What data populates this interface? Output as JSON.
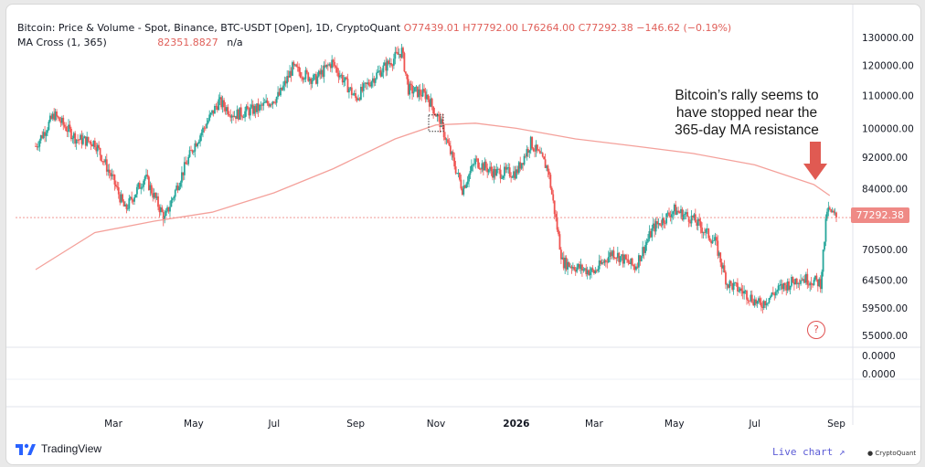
{
  "legend": {
    "title": "Bitcoin: Price & Volume - Spot, Binance, BTC-USDT [Open], 1D, CryptoQuant",
    "ohlc": "O77439.01  H77792.00  L76264.00  C77292.38  −146.62 (−0.19%)",
    "ma_label": "MA Cross (1, 365)",
    "ma_value": "82351.8827",
    "ma_na": "n/a"
  },
  "price_tag": "77292.38",
  "annotation": {
    "line1": "Bitcoin’s rally seems to",
    "line2": "have stopped near the",
    "line3": "365-day MA resistance"
  },
  "help_icon_text": "?",
  "branding": {
    "tradingview": "TradingView",
    "live_chart": "Live chart ↗",
    "cryptoquant": "● CryptoQuant"
  },
  "colors": {
    "up": "#26a69a",
    "down": "#ef5350",
    "ma": "#f4a19b",
    "arrow": "#e05a52",
    "axis_text": "#131722"
  },
  "chart_data": {
    "type": "candlestick",
    "title": "Bitcoin: Price & Volume - Spot, Binance, BTC-USDT [Open], 1D, CryptoQuant",
    "y_scale": "log",
    "ylim": [
      55000,
      130000
    ],
    "y_ticks": [
      "130000.00",
      "120000.00",
      "110000.00",
      "100000.00",
      "92000.00",
      "84000.00",
      "70500.00",
      "64500.00",
      "59500.00",
      "55000.00"
    ],
    "y_ticks_values": [
      130000,
      120000,
      110000,
      100000,
      92000,
      84000,
      70500,
      64500,
      59500,
      55000
    ],
    "lower_pane_ticks": [
      "0.0000",
      "0.0000"
    ],
    "x_ticks": [
      "Mar",
      "May",
      "Jul",
      "Sep",
      "Nov",
      "2026",
      "Mar",
      "May",
      "Jul",
      "Sep"
    ],
    "x_ticks_dates": [
      "2025-03-01",
      "2025-05-01",
      "2025-07-01",
      "2025-09-01",
      "2025-11-01",
      "2026-01-01",
      "2026-03-01",
      "2026-05-01",
      "2026-07-01",
      "2026-09-01"
    ],
    "x_range": [
      "2025-01-01",
      "2026-09-01"
    ],
    "price_series": {
      "name": "BTC-USDT",
      "dates": [
        "2025-01-01",
        "2025-01-15",
        "2025-02-01",
        "2025-02-15",
        "2025-03-01",
        "2025-03-10",
        "2025-03-25",
        "2025-04-09",
        "2025-04-20",
        "2025-05-01",
        "2025-05-20",
        "2025-06-01",
        "2025-06-20",
        "2025-07-05",
        "2025-07-15",
        "2025-08-01",
        "2025-08-14",
        "2025-09-01",
        "2025-09-15",
        "2025-10-06",
        "2025-10-11",
        "2025-10-25",
        "2025-11-05",
        "2025-11-21",
        "2025-12-01",
        "2025-12-15",
        "2026-01-01",
        "2026-01-12",
        "2026-01-25",
        "2026-02-05",
        "2026-02-15",
        "2026-03-01",
        "2026-03-15",
        "2026-04-01",
        "2026-04-15",
        "2026-05-01",
        "2026-05-15",
        "2026-06-01",
        "2026-06-10",
        "2026-06-25",
        "2026-07-05",
        "2026-07-20",
        "2026-08-05",
        "2026-08-20",
        "2026-08-25",
        "2026-09-01"
      ],
      "close": [
        95000,
        104000,
        97000,
        96000,
        86000,
        79000,
        87000,
        77000,
        86000,
        95000,
        108000,
        104000,
        106000,
        110000,
        119000,
        115000,
        121000,
        109000,
        116000,
        125000,
        112000,
        110000,
        101000,
        84000,
        91000,
        88000,
        88000,
        96000,
        89000,
        68000,
        67000,
        66000,
        70000,
        67000,
        75000,
        79000,
        77000,
        72000,
        64000,
        62000,
        60000,
        63000,
        65000,
        64000,
        79000,
        77300
      ]
    },
    "ma_series": {
      "name": "MA Cross (1, 365)",
      "dates": [
        "2025-01-01",
        "2025-02-15",
        "2025-04-01",
        "2025-05-15",
        "2025-07-01",
        "2025-08-15",
        "2025-10-01",
        "2025-11-01",
        "2025-12-01",
        "2026-01-01",
        "2026-02-15",
        "2026-04-01",
        "2026-05-15",
        "2026-07-01",
        "2026-08-15",
        "2026-08-27"
      ],
      "values": [
        66500,
        74000,
        76500,
        78500,
        83000,
        89000,
        97000,
        101000,
        101500,
        100000,
        97000,
        95000,
        93000,
        90000,
        85000,
        82351.8827
      ]
    },
    "last_close": 77292.38,
    "annotations": [
      "Bitcoin’s rally seems to have stopped near the 365-day MA resistance"
    ]
  }
}
